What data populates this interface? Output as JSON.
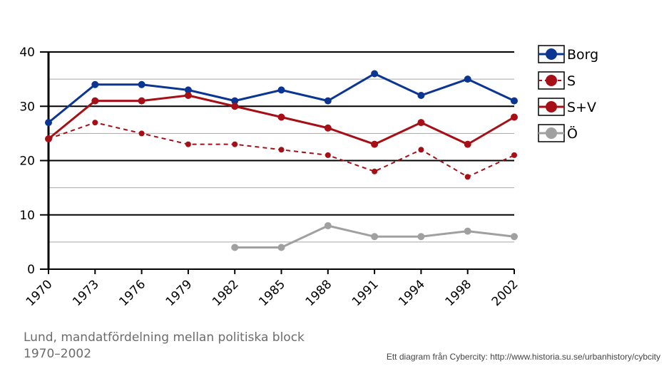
{
  "chart_data": {
    "type": "line",
    "categories": [
      "1970",
      "1973",
      "1976",
      "1979",
      "1982",
      "1985",
      "1988",
      "1991",
      "1994",
      "1998",
      "2002"
    ],
    "ylim": [
      0,
      40
    ],
    "yticks": [
      0,
      10,
      20,
      30,
      40
    ],
    "ytick_labels": [
      "0",
      "10",
      "20",
      "30",
      "40"
    ],
    "grid": true,
    "legend_position": "right",
    "series": [
      {
        "name": "Borg",
        "color": "#0a3592",
        "style": "solid",
        "values": [
          27,
          34,
          34,
          33,
          31,
          33,
          31,
          36,
          32,
          35,
          31
        ]
      },
      {
        "name": "S",
        "color": "#a50f15",
        "style": "dashed",
        "values": [
          24,
          27,
          25,
          23,
          23,
          22,
          21,
          18,
          22,
          17,
          21
        ]
      },
      {
        "name": "S+V",
        "color": "#a50f15",
        "style": "solid",
        "values": [
          24,
          31,
          31,
          32,
          30,
          28,
          26,
          23,
          27,
          23,
          28
        ]
      },
      {
        "name": "Ö",
        "color": "#a0a0a0",
        "style": "solid",
        "values": [
          null,
          null,
          null,
          null,
          4,
          4,
          8,
          6,
          6,
          7,
          6
        ]
      }
    ]
  },
  "caption": "Lund, mandatfördelning mellan politiska block 1970–2002",
  "credit": "Ett diagram från Cybercity: http://www.historia.su.se/urbanhistory/cybcity"
}
